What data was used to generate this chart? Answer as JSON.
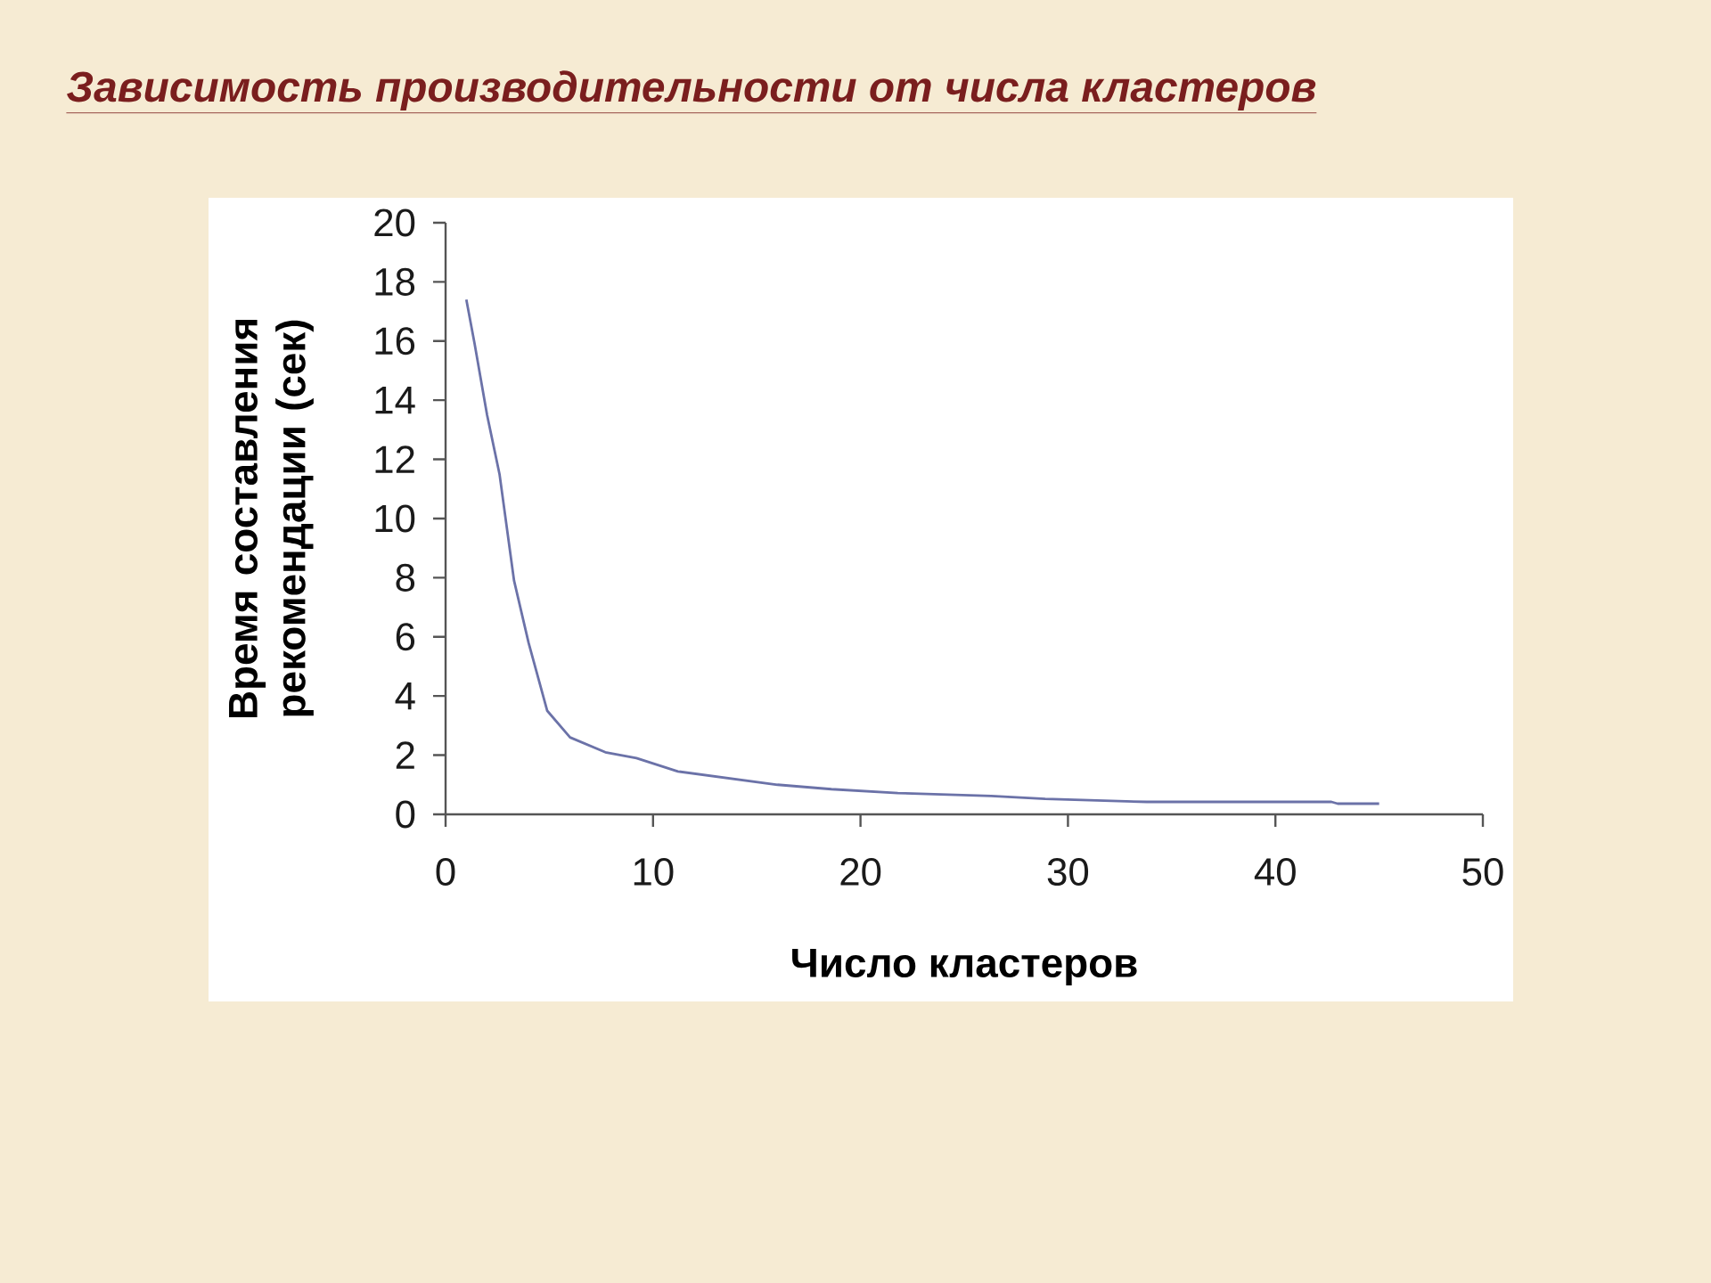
{
  "chart_data": {
    "type": "line",
    "title": "Зависимость производительности от числа кластеров",
    "xlabel": "Число кластеров",
    "ylabel": "Время составления рекомендации (сек)",
    "x": [
      1,
      1.4,
      2,
      2.6,
      3.3,
      4,
      4.9,
      6,
      7.7,
      9.2,
      11.2,
      16,
      18.6,
      21.8,
      26.3,
      28.9,
      33.8,
      42.7,
      43,
      45
    ],
    "series": [
      {
        "color": "#6b72a8",
        "values": [
          17.4,
          15.9,
          13.5,
          11.5,
          7.9,
          5.8,
          3.5,
          2.6,
          2.1,
          1.9,
          1.45,
          1.0,
          0.85,
          0.72,
          0.62,
          0.52,
          0.42,
          0.42,
          0.36,
          0.36
        ]
      }
    ],
    "xlim": [
      0,
      50
    ],
    "xticks": [
      0,
      10,
      20,
      30,
      40,
      50
    ],
    "ylim": [
      0,
      20
    ],
    "yticks": [
      0,
      2,
      4,
      6,
      8,
      10,
      12,
      14,
      16,
      18,
      20
    ]
  }
}
